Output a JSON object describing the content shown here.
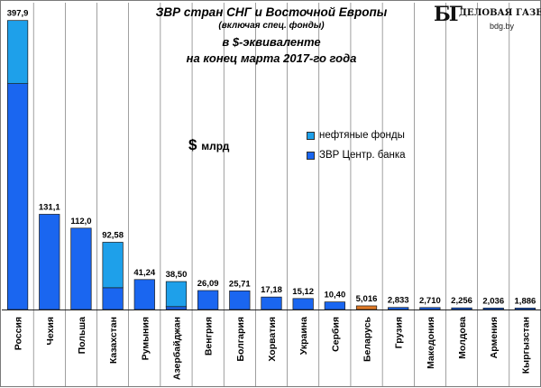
{
  "logo": {
    "mark": "БГ",
    "name": "ДЕЛОВАЯ ГАЗЕТА",
    "site": "bdg.by"
  },
  "colors": {
    "oil_funds": "#1ea0ea",
    "central_bank": "#1a66f0",
    "belarus": "#e07a26",
    "gridline": "#606060"
  },
  "chart_data": {
    "type": "bar",
    "stacked": true,
    "title": "ЗВР стран СНГ и Восточной Европы",
    "subtitle_lines": [
      "(включая спец. фонды)",
      "в $-эквиваленте",
      "на конец марта 2017-го года"
    ],
    "unit_label": "$",
    "unit_suffix": "млрд",
    "ylim": [
      0,
      400
    ],
    "grid": "vertical-separators",
    "legend_position": "center-right",
    "legend": [
      "нефтяные фонды",
      "ЗВР Центр. банка"
    ],
    "categories": [
      "Россия",
      "Чехия",
      "Польша",
      "Казахстан",
      "Румыния",
      "Азербайджан",
      "Венгрия",
      "Болгария",
      "Хорватия",
      "Украина",
      "Сербия",
      "Беларусь",
      "Грузия",
      "Македония",
      "Молдова",
      "Армения",
      "Кыргызстан"
    ],
    "labels": [
      "397,9",
      "131,1",
      "112,0",
      "92,58",
      "41,24",
      "38,50",
      "26,09",
      "25,71",
      "17,18",
      "15,12",
      "10,40",
      "5,016",
      "2,833",
      "2,710",
      "2,256",
      "2,036",
      "1,886"
    ],
    "series": [
      {
        "name": "ЗВР Центр. банка",
        "values": [
          311.0,
          131.1,
          112.0,
          30.0,
          41.24,
          4.0,
          26.09,
          25.71,
          17.18,
          15.12,
          10.4,
          5.016,
          2.833,
          2.71,
          2.256,
          2.036,
          1.886
        ]
      },
      {
        "name": "нефтяные фонды",
        "values": [
          86.9,
          0,
          0,
          62.58,
          0,
          34.5,
          0,
          0,
          0,
          0,
          0,
          0,
          0,
          0,
          0,
          0,
          0
        ]
      }
    ],
    "highlight_category": "Беларусь"
  }
}
